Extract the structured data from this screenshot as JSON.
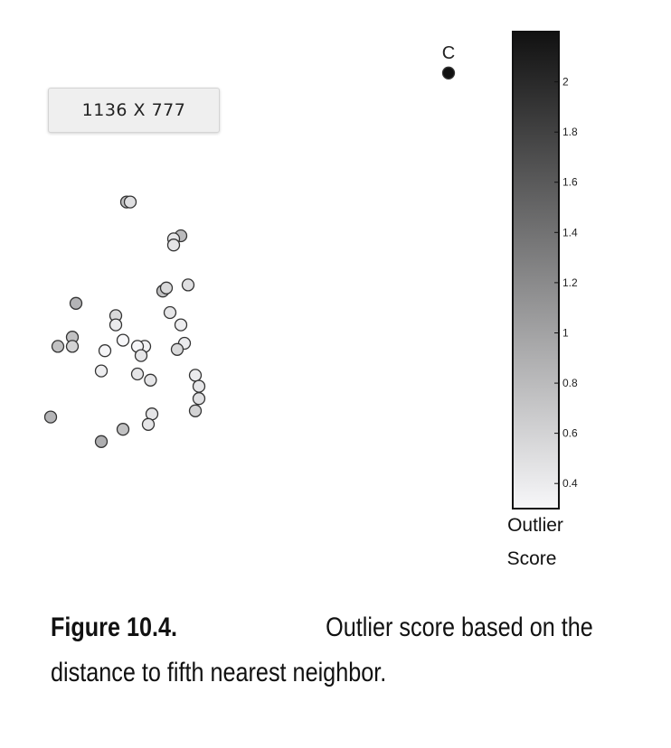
{
  "badge": {
    "text": "1136 X 777"
  },
  "caption": {
    "label": "Figure 10.4.",
    "line1": "Outlier score based on the",
    "line2": "distance to fifth nearest neighbor."
  },
  "chart_data": {
    "type": "scatter",
    "annotations": [
      {
        "text": "C",
        "point_index": 0
      }
    ],
    "colorbar": {
      "label_line1": "Outlier",
      "label_line2": "Score",
      "ticks": [
        "0.4",
        "0.6",
        "0.8",
        "1",
        "1.2",
        "1.4",
        "1.6",
        "1.8",
        "2"
      ],
      "min": 0.3,
      "max": 2.2,
      "color_low": "#f7f7f9",
      "color_high": "#111111"
    },
    "x": [
      6.2,
      1.75,
      1.8,
      2.5,
      2.4,
      2.4,
      2.6,
      2.25,
      2.3,
      2.35,
      2.5,
      2.55,
      2.45,
      2.0,
      1.9,
      1.95,
      1.7,
      1.6,
      1.45,
      1.6,
      1.4,
      2.7,
      2.75,
      2.75,
      2.7,
      2.1,
      2.05,
      2.08,
      1.9,
      1.0,
      1.05,
      0.8,
      1.0,
      0.7,
      1.4,
      1.7
    ],
    "y": [
      11.4,
      9.3,
      9.3,
      8.75,
      8.7,
      8.6,
      7.95,
      7.85,
      7.9,
      7.5,
      7.3,
      7.0,
      6.9,
      6.95,
      6.95,
      6.8,
      7.05,
      7.45,
      6.88,
      7.3,
      6.55,
      6.48,
      6.3,
      6.1,
      5.9,
      5.85,
      5.68,
      6.4,
      6.5,
      7.1,
      7.65,
      6.95,
      6.95,
      5.8,
      5.4,
      5.6
    ],
    "scores": [
      2.2,
      0.75,
      0.5,
      0.8,
      0.45,
      0.45,
      0.5,
      0.75,
      0.55,
      0.45,
      0.38,
      0.4,
      0.55,
      0.35,
      0.32,
      0.45,
      0.3,
      0.55,
      0.32,
      0.4,
      0.38,
      0.4,
      0.45,
      0.5,
      0.6,
      0.45,
      0.45,
      0.45,
      0.45,
      0.75,
      0.85,
      0.75,
      0.6,
      0.85,
      0.9,
      0.75
    ]
  }
}
